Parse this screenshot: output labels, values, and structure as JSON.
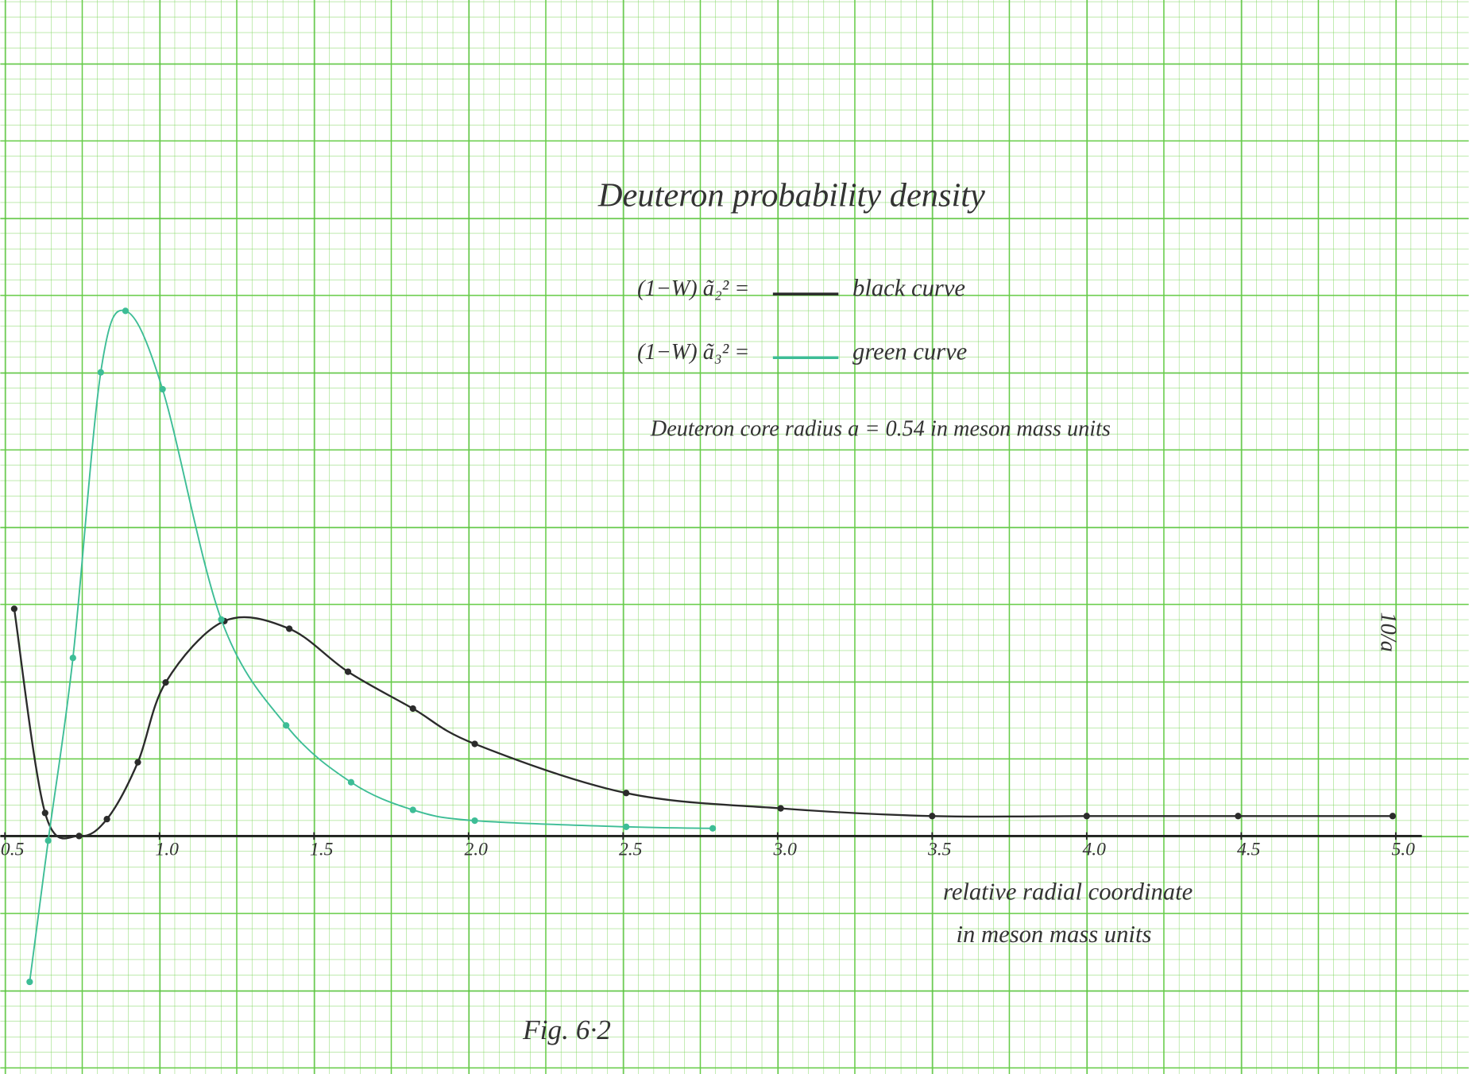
{
  "chart_data": {
    "type": "line",
    "title": "Deuteron probability density",
    "annotations": [
      "Deuteron core radius a = 0.54 in meson mass units",
      "10/a",
      "Fig. 6·2"
    ],
    "xlabel": [
      "relative radial coordinate",
      "in meson mass units"
    ],
    "xlim": [
      0.485,
      5.236
    ],
    "ylim": [
      -1.55,
      5.445
    ],
    "xticks": [
      {
        "value": 0.5,
        "label": "0.5"
      },
      {
        "value": 1,
        "label": "1.0"
      },
      1.5,
      {
        "value": 2,
        "label": "2.0"
      },
      2.5,
      {
        "value": 3,
        "label": "3.0"
      },
      3.5,
      {
        "value": 4,
        "label": "4.0"
      },
      4.5,
      {
        "value": 5,
        "label": "5.0"
      }
    ],
    "grid": true,
    "series": [
      {
        "name": "black curve",
        "label": "(1−W) ã₂² =",
        "color": "#2b2b2b",
        "x": [
          0.53,
          0.63,
          0.74,
          0.83,
          0.93,
          1.02,
          1.21,
          1.42,
          1.61,
          1.82,
          2.02,
          2.51,
          3.01,
          3.5,
          4.0,
          4.49,
          4.99
        ],
        "values": [
          1.48,
          0.15,
          0.0,
          0.11,
          0.48,
          1.0,
          1.4,
          1.35,
          1.07,
          0.83,
          0.6,
          0.28,
          0.18,
          0.13,
          0.13,
          0.13,
          0.13
        ]
      },
      {
        "name": "green curve",
        "label": "(1−W) ã₃² =",
        "color": "#3dbd96",
        "x": [
          0.58,
          0.64,
          0.72,
          0.81,
          0.89,
          1.01,
          1.2,
          1.41,
          1.62,
          1.82,
          2.02,
          2.51,
          2.79
        ],
        "values": [
          -0.95,
          -0.03,
          1.16,
          3.02,
          3.42,
          2.91,
          1.41,
          0.72,
          0.35,
          0.17,
          0.1,
          0.06,
          0.05
        ]
      }
    ]
  }
}
